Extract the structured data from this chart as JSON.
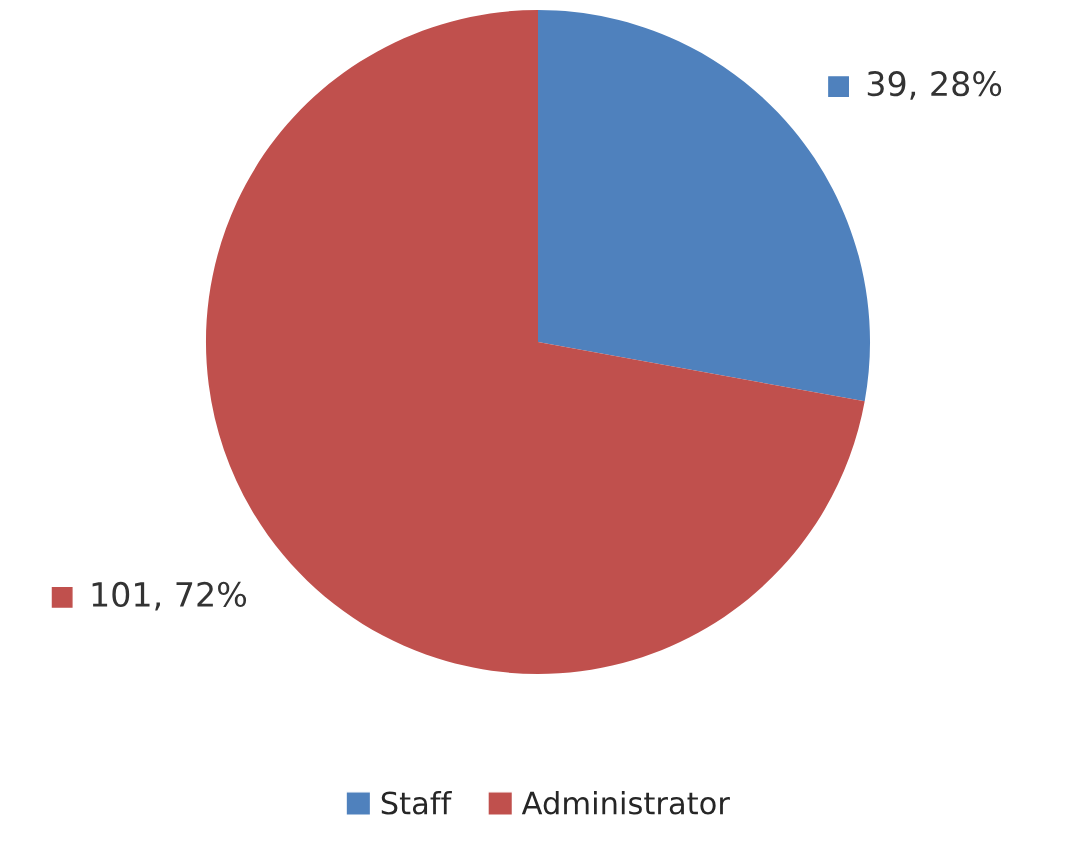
{
  "chart_data": {
    "type": "pie",
    "categories": [
      "Staff",
      "Administrator"
    ],
    "values": [
      39,
      101
    ],
    "colors": [
      "#4f81bd",
      "#c0504d"
    ],
    "value_labels": [
      "39, 28%",
      "101, 72%"
    ],
    "legend": "bottom"
  }
}
